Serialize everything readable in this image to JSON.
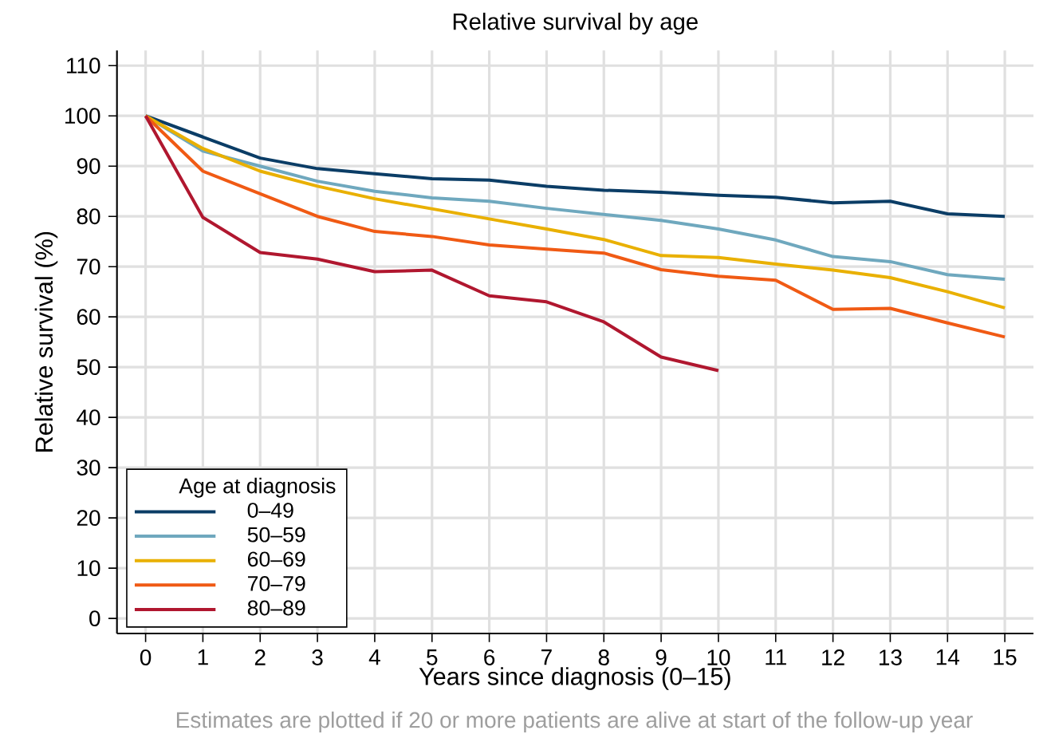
{
  "chart_data": {
    "type": "line",
    "title": "Relative survival by age",
    "xlabel": "Years since diagnosis (0–15)",
    "ylabel": "Relative survival (%)",
    "legend_title": "Age at diagnosis",
    "annotations": [
      "Estimates are plotted if 20 or more patients are alive at start of the follow-up year"
    ],
    "x": [
      0,
      1,
      2,
      3,
      4,
      5,
      6,
      7,
      8,
      9,
      10,
      11,
      12,
      13,
      14,
      15
    ],
    "series": [
      {
        "name": "0–49",
        "color": "#0b3d66",
        "values": [
          100,
          95.8,
          91.6,
          89.5,
          88.5,
          87.5,
          87.2,
          86,
          85.2,
          84.8,
          84.2,
          83.8,
          82.7,
          83,
          80.5,
          80
        ]
      },
      {
        "name": "50–59",
        "color": "#6fa8be",
        "values": [
          100,
          93,
          90,
          87,
          85,
          83.7,
          83,
          81.6,
          80.4,
          79.2,
          77.5,
          75.3,
          72,
          71,
          68.4,
          67.5
        ]
      },
      {
        "name": "60–69",
        "color": "#e9b000",
        "values": [
          100,
          93.5,
          89,
          86,
          83.5,
          81.5,
          79.5,
          77.5,
          75.4,
          72.2,
          71.8,
          70.5,
          69.3,
          67.8,
          65,
          61.8
        ]
      },
      {
        "name": "70–79",
        "color": "#f05a14",
        "values": [
          100,
          89,
          84.5,
          80,
          77,
          76,
          74.3,
          73.5,
          72.7,
          69.4,
          68.1,
          67.3,
          61.5,
          61.7,
          58.8,
          56
        ]
      },
      {
        "name": "80–89",
        "color": "#b0172f",
        "values": [
          100,
          79.8,
          72.8,
          71.5,
          69,
          69.3,
          64.2,
          63,
          59,
          52,
          49.3,
          null,
          null,
          null,
          null,
          null
        ]
      }
    ],
    "xlim": [
      -0.5,
      15.5
    ],
    "ylim": [
      -3,
      113
    ],
    "xticks": [
      0,
      1,
      2,
      3,
      4,
      5,
      6,
      7,
      8,
      9,
      10,
      11,
      12,
      13,
      14,
      15
    ],
    "yticks": [
      0,
      10,
      20,
      30,
      40,
      50,
      60,
      70,
      80,
      90,
      100,
      110
    ],
    "grid": true,
    "legend": "bottom left",
    "marker": "none",
    "line_style": "solid"
  }
}
